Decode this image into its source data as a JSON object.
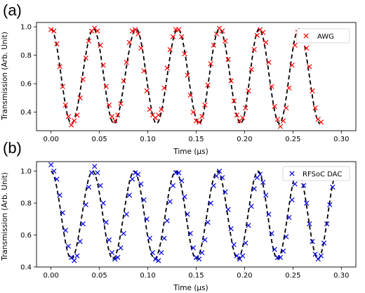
{
  "chart_data": [
    {
      "panel_label": "(a)",
      "type": "scatter",
      "xlabel": "Time (μs)",
      "ylabel": "Transmission (Arb. Unit)",
      "xlim": [
        -0.015,
        0.315
      ],
      "ylim": [
        0.27,
        1.03
      ],
      "xticks": [
        0.0,
        0.05,
        0.1,
        0.15,
        0.2,
        0.25,
        0.3
      ],
      "xtick_labels": [
        "0.00",
        "0.05",
        "0.10",
        "0.15",
        "0.20",
        "0.25",
        "0.30"
      ],
      "yticks": [
        0.4,
        0.6,
        0.8,
        1.0
      ],
      "ytick_labels": [
        "0.4",
        "0.6",
        "0.8",
        "1.0"
      ],
      "legend": {
        "position": "top-right",
        "entries": [
          {
            "label": "AWG",
            "color": "#ff0000",
            "marker": "x"
          }
        ]
      },
      "fit_curve": {
        "style": "dashed",
        "color": "#000000",
        "model": "cosine",
        "x_range": [
          0.0,
          0.28
        ],
        "peaks_x": [
          0.0,
          0.044,
          0.088,
          0.131,
          0.174,
          0.215,
          0.256
        ],
        "troughs_x": [
          0.021,
          0.065,
          0.109,
          0.153,
          0.196,
          0.236,
          0.278
        ],
        "max_y": 0.985,
        "min_y": 0.32
      },
      "series": [
        {
          "name": "AWG",
          "color": "#ff0000",
          "marker": "x",
          "x": [
            0.0,
            0.003,
            0.006,
            0.009,
            0.012,
            0.015,
            0.018,
            0.021,
            0.024,
            0.027,
            0.03,
            0.033,
            0.036,
            0.039,
            0.042,
            0.045,
            0.048,
            0.051,
            0.054,
            0.057,
            0.06,
            0.063,
            0.066,
            0.069,
            0.072,
            0.075,
            0.078,
            0.081,
            0.084,
            0.087,
            0.09,
            0.093,
            0.096,
            0.099,
            0.102,
            0.105,
            0.108,
            0.111,
            0.114,
            0.117,
            0.12,
            0.123,
            0.126,
            0.129,
            0.132,
            0.135,
            0.138,
            0.141,
            0.144,
            0.147,
            0.15,
            0.153,
            0.156,
            0.159,
            0.162,
            0.165,
            0.168,
            0.171,
            0.174,
            0.177,
            0.18,
            0.183,
            0.186,
            0.189,
            0.192,
            0.195,
            0.198,
            0.201,
            0.204,
            0.207,
            0.21,
            0.213,
            0.216,
            0.219,
            0.222,
            0.225,
            0.228,
            0.231,
            0.234,
            0.237,
            0.24,
            0.243,
            0.246,
            0.249,
            0.252,
            0.255,
            0.258,
            0.261,
            0.264,
            0.267,
            0.27,
            0.273,
            0.276,
            0.279
          ],
          "y": [
            0.98,
            0.97,
            0.88,
            0.72,
            0.58,
            0.45,
            0.37,
            0.31,
            0.34,
            0.38,
            0.5,
            0.63,
            0.78,
            0.9,
            0.97,
            0.99,
            0.97,
            0.87,
            0.73,
            0.58,
            0.45,
            0.37,
            0.34,
            0.38,
            0.46,
            0.62,
            0.75,
            0.89,
            0.97,
            0.98,
            0.95,
            0.85,
            0.69,
            0.55,
            0.42,
            0.38,
            0.36,
            0.38,
            0.42,
            0.57,
            0.71,
            0.84,
            0.93,
            0.98,
            0.98,
            0.93,
            0.81,
            0.66,
            0.52,
            0.4,
            0.34,
            0.33,
            0.37,
            0.45,
            0.59,
            0.74,
            0.87,
            0.95,
            0.99,
            0.97,
            0.9,
            0.77,
            0.62,
            0.48,
            0.38,
            0.34,
            0.36,
            0.43,
            0.55,
            0.7,
            0.84,
            0.94,
            0.98,
            0.96,
            0.89,
            0.75,
            0.58,
            0.44,
            0.35,
            0.3,
            0.34,
            0.43,
            0.57,
            0.73,
            0.87,
            0.96,
            0.97,
            0.96,
            0.85,
            0.72,
            0.55,
            0.43,
            0.35,
            0.33
          ]
        }
      ]
    },
    {
      "panel_label": "(b)",
      "type": "scatter",
      "xlabel": "Time (μs)",
      "ylabel": "Transmission (Arb. Unit)",
      "xlim": [
        -0.015,
        0.315
      ],
      "ylim": [
        0.4,
        1.06
      ],
      "xticks": [
        0.0,
        0.05,
        0.1,
        0.15,
        0.2,
        0.25,
        0.3
      ],
      "xtick_labels": [
        "0.00",
        "0.05",
        "0.10",
        "0.15",
        "0.20",
        "0.25",
        "0.30"
      ],
      "yticks": [
        0.4,
        0.6,
        0.8,
        1.0
      ],
      "ytick_labels": [
        "0.4",
        "0.6",
        "0.8",
        "1.0"
      ],
      "legend": {
        "position": "top-right",
        "entries": [
          {
            "label": "RFSoC DAC",
            "color": "#0000dd",
            "marker": "x"
          }
        ]
      },
      "fit_curve": {
        "style": "dashed",
        "color": "#000000",
        "model": "cosine",
        "x_range": [
          0.0,
          0.296
        ],
        "peaks_x": [
          0.0,
          0.043,
          0.086,
          0.129,
          0.172,
          0.214,
          0.255,
          0.296
        ],
        "troughs_x": [
          0.021,
          0.064,
          0.107,
          0.15,
          0.193,
          0.234,
          0.276
        ],
        "max_y": 1.0,
        "min_y": 0.45
      },
      "series": [
        {
          "name": "RFSoC DAC",
          "color": "#0000dd",
          "marker": "x",
          "x": [
            0.0,
            0.003,
            0.006,
            0.009,
            0.012,
            0.015,
            0.018,
            0.021,
            0.024,
            0.027,
            0.03,
            0.033,
            0.036,
            0.039,
            0.042,
            0.045,
            0.048,
            0.051,
            0.054,
            0.057,
            0.06,
            0.063,
            0.066,
            0.069,
            0.072,
            0.075,
            0.078,
            0.081,
            0.084,
            0.087,
            0.09,
            0.093,
            0.096,
            0.099,
            0.102,
            0.105,
            0.108,
            0.111,
            0.114,
            0.117,
            0.12,
            0.123,
            0.126,
            0.129,
            0.132,
            0.135,
            0.138,
            0.141,
            0.144,
            0.147,
            0.15,
            0.153,
            0.156,
            0.159,
            0.162,
            0.165,
            0.168,
            0.171,
            0.174,
            0.177,
            0.18,
            0.183,
            0.186,
            0.189,
            0.192,
            0.195,
            0.198,
            0.201,
            0.204,
            0.207,
            0.21,
            0.213,
            0.216,
            0.219,
            0.222,
            0.225,
            0.228,
            0.231,
            0.234,
            0.237,
            0.24,
            0.243,
            0.246,
            0.249,
            0.252,
            0.255,
            0.258,
            0.261,
            0.264,
            0.267,
            0.27,
            0.273,
            0.276,
            0.279,
            0.282,
            0.285,
            0.288,
            0.291,
            0.294,
            0.297
          ],
          "y": [
            1.04,
            1.0,
            0.95,
            0.85,
            0.74,
            0.63,
            0.53,
            0.46,
            0.44,
            0.47,
            0.56,
            0.67,
            0.79,
            0.9,
            0.99,
            1.03,
            0.99,
            0.91,
            0.8,
            0.68,
            0.57,
            0.49,
            0.45,
            0.46,
            0.52,
            0.61,
            0.73,
            0.85,
            0.95,
            0.99,
            0.98,
            0.92,
            0.82,
            0.7,
            0.58,
            0.49,
            0.45,
            0.44,
            0.49,
            0.58,
            0.69,
            0.81,
            0.91,
            0.99,
            0.99,
            0.94,
            0.84,
            0.73,
            0.61,
            0.52,
            0.46,
            0.45,
            0.49,
            0.57,
            0.68,
            0.8,
            0.91,
            0.97,
            1.0,
            0.96,
            0.87,
            0.76,
            0.64,
            0.54,
            0.47,
            0.45,
            0.47,
            0.55,
            0.66,
            0.78,
            0.89,
            0.96,
            0.98,
            0.93,
            0.85,
            0.73,
            0.61,
            0.51,
            0.46,
            0.46,
            0.5,
            0.59,
            0.71,
            0.82,
            0.92,
            0.97,
            0.97,
            0.91,
            0.8,
            0.67,
            0.56,
            0.48,
            0.45,
            0.47,
            0.55,
            0.67,
            0.79,
            0.9,
            0.96,
            0.98
          ]
        }
      ]
    }
  ]
}
